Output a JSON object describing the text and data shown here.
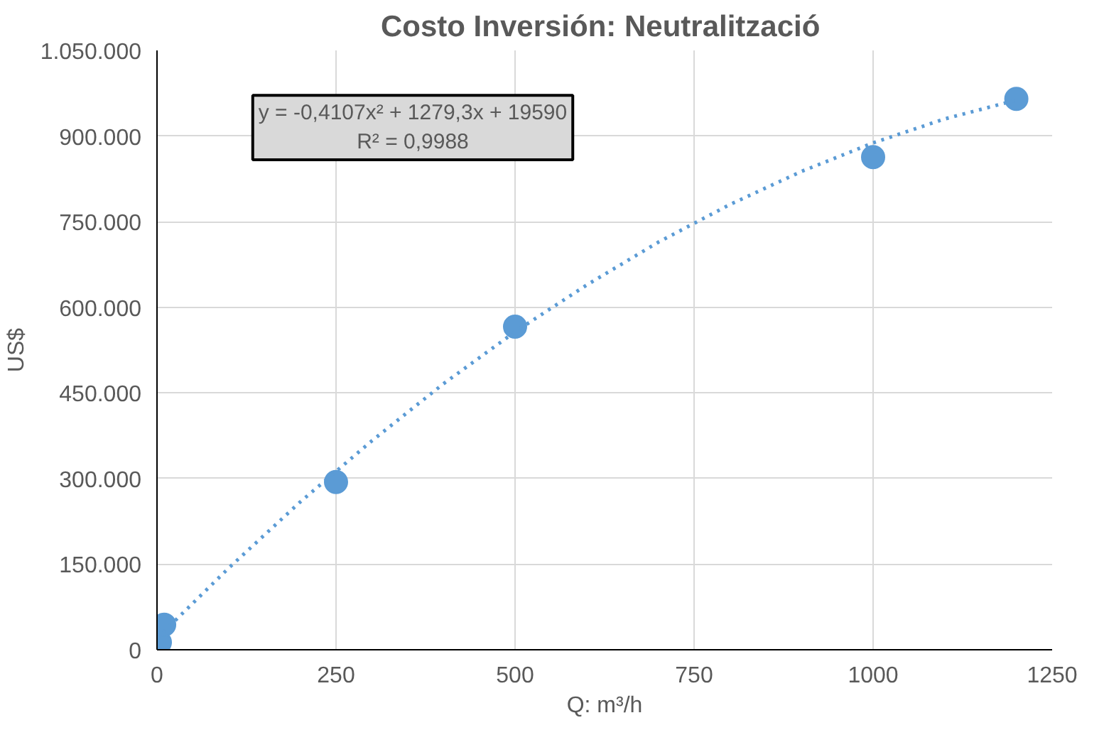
{
  "chart_data": {
    "type": "scatter",
    "title": "Costo Inversión:  Neutralització",
    "xlabel": "Q: m³/h",
    "ylabel": "US$",
    "annotations": [
      "y = -0,4107x² + 1279,3x + 19590",
      "R² = 0,9988"
    ],
    "series": [
      {
        "color": "#5b9bd5",
        "marker": "circle",
        "x": [
          4,
          10,
          250,
          500,
          1000,
          1200
        ],
        "values": [
          13000,
          44000,
          294000,
          566000,
          863000,
          965000
        ]
      },
      {
        "type": "line",
        "color": "#5b9bd5",
        "marker": "none",
        "line_style": "dotted",
        "x": [
          0,
          100,
          200,
          300,
          400,
          500,
          600,
          700,
          800,
          900,
          1000,
          1100,
          1200
        ],
        "values": [
          20000,
          143000,
          259000,
          366000,
          466000,
          557000,
          639000,
          714000,
          780000,
          838000,
          888000,
          930000,
          963000
        ]
      }
    ],
    "xlim": [
      0,
      1250
    ],
    "xticks": [
      0,
      250,
      500,
      750,
      1000,
      1250
    ],
    "ylim": [
      0,
      1050000
    ],
    "yticks": [
      0,
      {
        "value": 150000,
        "label": "150.000"
      },
      {
        "value": 300000,
        "label": "300.000"
      },
      {
        "value": 450000,
        "label": "450.000"
      },
      {
        "value": 600000,
        "label": "600.000"
      },
      {
        "value": 750000,
        "label": "750.000"
      },
      {
        "value": 900000,
        "label": "900.000"
      },
      {
        "value": 1050000,
        "label": "1.050.000"
      }
    ],
    "grid": true
  }
}
